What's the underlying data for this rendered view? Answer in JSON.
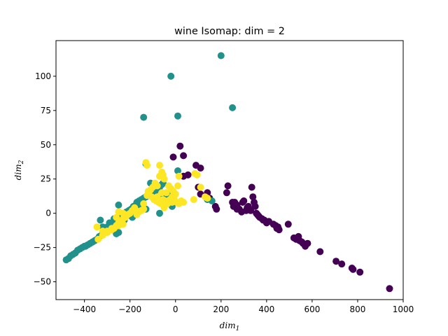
{
  "chart_data": {
    "type": "scatter",
    "title": "wine Isomap: dim = 2",
    "xlabel": {
      "base": "dim",
      "sub": "1"
    },
    "ylabel": {
      "base": "dim",
      "sub": "2"
    },
    "xlim": [
      -525,
      1000
    ],
    "ylim": [
      -63,
      126
    ],
    "xticks": [
      -400,
      -200,
      0,
      200,
      400,
      600,
      800,
      1000
    ],
    "yticks": [
      -50,
      -25,
      0,
      25,
      50,
      75,
      100
    ],
    "xtick_labels": [
      "−400",
      "−200",
      "0",
      "200",
      "400",
      "600",
      "800",
      "1000"
    ],
    "ytick_labels": [
      "−50",
      "−25",
      "0",
      "25",
      "50",
      "75",
      "100"
    ],
    "grid": false,
    "legend": null,
    "series": [
      {
        "color": "#440154",
        "points": [
          [
            20,
            49
          ],
          [
            35,
            42
          ],
          [
            -10,
            41
          ],
          [
            35,
            27
          ],
          [
            55,
            28
          ],
          [
            90,
            35
          ],
          [
            110,
            33
          ],
          [
            110,
            14
          ],
          [
            100,
            19
          ],
          [
            140,
            15
          ],
          [
            150,
            11
          ],
          [
            175,
            5
          ],
          [
            180,
            3
          ],
          [
            225,
            15
          ],
          [
            230,
            20
          ],
          [
            255,
            5
          ],
          [
            260,
            8
          ],
          [
            270,
            6
          ],
          [
            280,
            3
          ],
          [
            290,
            1
          ],
          [
            295,
            8
          ],
          [
            300,
            9
          ],
          [
            310,
            2
          ],
          [
            315,
            4
          ],
          [
            320,
            5
          ],
          [
            330,
            2
          ],
          [
            335,
            19
          ],
          [
            340,
            12
          ],
          [
            345,
            8
          ],
          [
            350,
            5
          ],
          [
            355,
            0
          ],
          [
            360,
            -1
          ],
          [
            365,
            -2
          ],
          [
            370,
            -3
          ],
          [
            380,
            -4
          ],
          [
            385,
            -5
          ],
          [
            390,
            -5
          ],
          [
            400,
            -7
          ],
          [
            410,
            -6
          ],
          [
            430,
            -8
          ],
          [
            440,
            -9
          ],
          [
            445,
            -11
          ],
          [
            450,
            -10
          ],
          [
            455,
            -12
          ],
          [
            495,
            -8
          ],
          [
            520,
            -18
          ],
          [
            530,
            -19
          ],
          [
            540,
            -17
          ],
          [
            545,
            -20
          ],
          [
            555,
            -21
          ],
          [
            560,
            -22
          ],
          [
            570,
            -24
          ],
          [
            580,
            -22
          ],
          [
            635,
            -28
          ],
          [
            705,
            -35
          ],
          [
            730,
            -37
          ],
          [
            775,
            -40
          ],
          [
            780,
            -41
          ],
          [
            810,
            -43
          ],
          [
            940,
            -55
          ],
          [
            250,
            8
          ],
          [
            270,
            3
          ]
        ]
      },
      {
        "color": "#21918c",
        "points": [
          [
            -480,
            -34
          ],
          [
            -470,
            -33
          ],
          [
            -460,
            -31
          ],
          [
            -450,
            -30
          ],
          [
            -440,
            -29
          ],
          [
            -430,
            -27
          ],
          [
            -420,
            -26
          ],
          [
            -410,
            -25
          ],
          [
            -400,
            -24
          ],
          [
            -395,
            -24
          ],
          [
            -385,
            -23
          ],
          [
            -375,
            -22
          ],
          [
            -365,
            -21
          ],
          [
            -355,
            -20
          ],
          [
            -345,
            -19
          ],
          [
            -335,
            -17
          ],
          [
            -325,
            -16
          ],
          [
            -315,
            -14
          ],
          [
            -305,
            -13
          ],
          [
            -300,
            -10
          ],
          [
            -290,
            -9
          ],
          [
            -280,
            -8
          ],
          [
            -270,
            -6
          ],
          [
            -265,
            -5
          ],
          [
            -255,
            -3
          ],
          [
            -245,
            -2
          ],
          [
            -230,
            -1
          ],
          [
            -220,
            0
          ],
          [
            -215,
            1
          ],
          [
            -205,
            2
          ],
          [
            -195,
            3
          ],
          [
            -185,
            5
          ],
          [
            -175,
            6
          ],
          [
            -170,
            8
          ],
          [
            -160,
            9
          ],
          [
            -150,
            10
          ],
          [
            -140,
            11
          ],
          [
            -130,
            12
          ],
          [
            -120,
            13
          ],
          [
            -110,
            15
          ],
          [
            -100,
            17
          ],
          [
            -90,
            16
          ],
          [
            -80,
            18
          ],
          [
            -70,
            19
          ],
          [
            -60,
            21
          ],
          [
            -55,
            22
          ],
          [
            -130,
            3
          ],
          [
            -150,
            5
          ],
          [
            -170,
            7
          ],
          [
            -240,
            0
          ],
          [
            -250,
            6
          ],
          [
            -270,
            -4
          ],
          [
            -290,
            -7
          ],
          [
            -320,
            -10
          ],
          [
            -330,
            -5
          ],
          [
            -110,
            22
          ],
          [
            -130,
            36
          ],
          [
            -140,
            70
          ],
          [
            -20,
            100
          ],
          [
            10,
            71
          ],
          [
            10,
            31
          ],
          [
            200,
            115
          ],
          [
            250,
            77
          ],
          [
            -60,
            14
          ],
          [
            -45,
            10
          ],
          [
            -35,
            8
          ],
          [
            -300,
            -11
          ],
          [
            -280,
            -12
          ],
          [
            -260,
            -15
          ],
          [
            -250,
            -14
          ],
          [
            -225,
            -5
          ],
          [
            -190,
            -3
          ],
          [
            -175,
            -1
          ],
          [
            140,
            10
          ],
          [
            160,
            9
          ],
          [
            -20,
            15
          ],
          [
            -15,
            5
          ],
          [
            -70,
            0
          ],
          [
            -40,
            12
          ]
        ]
      },
      {
        "color": "#fde725",
        "points": [
          [
            -130,
            37
          ],
          [
            -125,
            35
          ],
          [
            -70,
            35
          ],
          [
            -60,
            30
          ],
          [
            -55,
            28
          ],
          [
            -70,
            27
          ],
          [
            -50,
            25
          ],
          [
            -90,
            22
          ],
          [
            -80,
            20
          ],
          [
            -100,
            19
          ],
          [
            -110,
            17
          ],
          [
            -120,
            16
          ],
          [
            -125,
            13
          ],
          [
            -105,
            12
          ],
          [
            -95,
            10
          ],
          [
            -85,
            9
          ],
          [
            -75,
            8
          ],
          [
            -65,
            7
          ],
          [
            -55,
            10
          ],
          [
            -45,
            9
          ],
          [
            -35,
            7
          ],
          [
            -25,
            10
          ],
          [
            -15,
            12
          ],
          [
            -5,
            10
          ],
          [
            5,
            8
          ],
          [
            15,
            7
          ],
          [
            25,
            9
          ],
          [
            35,
            8
          ],
          [
            10,
            20
          ],
          [
            15,
            27
          ],
          [
            85,
            29
          ],
          [
            95,
            28
          ],
          [
            110,
            19
          ],
          [
            140,
            11
          ],
          [
            -180,
            4
          ],
          [
            -190,
            2
          ],
          [
            -200,
            0
          ],
          [
            -210,
            -1
          ],
          [
            -220,
            -3
          ],
          [
            -230,
            -4
          ],
          [
            -240,
            -6
          ],
          [
            -250,
            -7
          ],
          [
            -260,
            -9
          ],
          [
            -270,
            -11
          ],
          [
            -280,
            -12
          ],
          [
            -300,
            -14
          ],
          [
            -320,
            -16
          ],
          [
            -340,
            -19
          ],
          [
            -345,
            -10
          ],
          [
            -320,
            -13
          ],
          [
            -260,
            -3
          ],
          [
            -250,
            1
          ],
          [
            -230,
            0
          ],
          [
            -170,
            -1
          ],
          [
            -160,
            1
          ],
          [
            -150,
            2
          ],
          [
            -140,
            3
          ],
          [
            -30,
            20
          ],
          [
            -20,
            18
          ],
          [
            -10,
            16
          ],
          [
            0,
            14
          ],
          [
            -40,
            15
          ],
          [
            -60,
            15
          ],
          [
            -80,
            12
          ],
          [
            -115,
            13
          ],
          [
            -140,
            7
          ],
          [
            -230,
            -8
          ],
          [
            -250,
            -9
          ],
          [
            -280,
            -11
          ],
          [
            -300,
            -13
          ],
          [
            80,
            10
          ],
          [
            130,
            12
          ],
          [
            -50,
            4
          ],
          [
            -15,
            8
          ]
        ]
      }
    ]
  }
}
